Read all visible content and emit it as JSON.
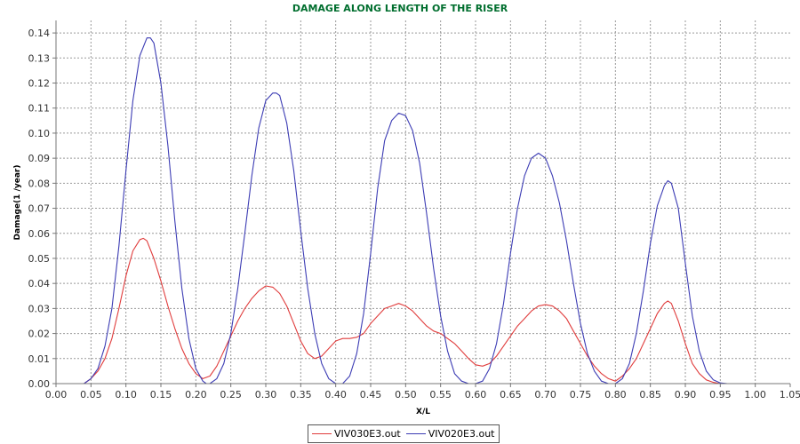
{
  "chart_data": {
    "type": "line",
    "title": "DAMAGE ALONG LENGTH OF THE RISER",
    "xlabel": "X/L",
    "ylabel": "Damage(1 /year)",
    "xlim": [
      0.0,
      1.05
    ],
    "ylim": [
      0.0,
      0.145
    ],
    "x_ticks": [
      "0.00",
      "0.05",
      "0.10",
      "0.15",
      "0.20",
      "0.25",
      "0.30",
      "0.35",
      "0.40",
      "0.45",
      "0.50",
      "0.55",
      "0.60",
      "0.65",
      "0.70",
      "0.75",
      "0.80",
      "0.85",
      "0.90",
      "0.95",
      "1.00",
      "1.05"
    ],
    "y_ticks": [
      "0.00",
      "0.01",
      "0.02",
      "0.03",
      "0.04",
      "0.05",
      "0.06",
      "0.07",
      "0.08",
      "0.09",
      "0.10",
      "0.11",
      "0.12",
      "0.13",
      "0.14"
    ],
    "grid": true,
    "legend_position": "bottom-center",
    "series": [
      {
        "name": "VIV030E3.out",
        "color": "#e03c3c",
        "x": [
          0.0,
          0.04,
          0.05,
          0.06,
          0.07,
          0.08,
          0.09,
          0.1,
          0.11,
          0.12,
          0.125,
          0.13,
          0.14,
          0.15,
          0.16,
          0.17,
          0.18,
          0.19,
          0.2,
          0.21,
          0.22,
          0.23,
          0.24,
          0.25,
          0.26,
          0.27,
          0.28,
          0.29,
          0.3,
          0.31,
          0.32,
          0.33,
          0.34,
          0.35,
          0.36,
          0.37,
          0.38,
          0.39,
          0.4,
          0.41,
          0.42,
          0.43,
          0.44,
          0.45,
          0.46,
          0.47,
          0.48,
          0.49,
          0.5,
          0.51,
          0.52,
          0.53,
          0.54,
          0.55,
          0.56,
          0.57,
          0.58,
          0.59,
          0.6,
          0.61,
          0.62,
          0.63,
          0.64,
          0.65,
          0.66,
          0.67,
          0.68,
          0.69,
          0.7,
          0.71,
          0.72,
          0.73,
          0.74,
          0.75,
          0.76,
          0.77,
          0.78,
          0.79,
          0.8,
          0.81,
          0.82,
          0.83,
          0.84,
          0.85,
          0.86,
          0.87,
          0.875,
          0.88,
          0.89,
          0.9,
          0.91,
          0.92,
          0.93,
          0.94,
          0.95,
          0.96,
          1.05
        ],
        "y": [
          0.0,
          0.0,
          0.002,
          0.005,
          0.01,
          0.018,
          0.03,
          0.043,
          0.053,
          0.0575,
          0.058,
          0.057,
          0.05,
          0.041,
          0.031,
          0.022,
          0.014,
          0.008,
          0.004,
          0.002,
          0.003,
          0.007,
          0.013,
          0.019,
          0.025,
          0.03,
          0.034,
          0.037,
          0.039,
          0.0385,
          0.036,
          0.031,
          0.024,
          0.017,
          0.012,
          0.01,
          0.011,
          0.014,
          0.017,
          0.018,
          0.018,
          0.0185,
          0.02,
          0.024,
          0.027,
          0.03,
          0.031,
          0.032,
          0.031,
          0.029,
          0.026,
          0.023,
          0.021,
          0.02,
          0.018,
          0.016,
          0.013,
          0.01,
          0.0075,
          0.007,
          0.008,
          0.011,
          0.015,
          0.019,
          0.023,
          0.026,
          0.029,
          0.031,
          0.0315,
          0.031,
          0.029,
          0.026,
          0.021,
          0.016,
          0.011,
          0.007,
          0.004,
          0.002,
          0.001,
          0.003,
          0.006,
          0.01,
          0.016,
          0.022,
          0.028,
          0.032,
          0.033,
          0.032,
          0.025,
          0.016,
          0.008,
          0.004,
          0.0015,
          0.0005,
          0.0,
          0.0,
          0.0
        ]
      },
      {
        "name": "VIV020E3.out",
        "color": "#3c3cb4",
        "x": [
          0.0,
          0.04,
          0.05,
          0.06,
          0.07,
          0.08,
          0.09,
          0.1,
          0.11,
          0.12,
          0.13,
          0.135,
          0.14,
          0.15,
          0.16,
          0.17,
          0.18,
          0.19,
          0.2,
          0.21,
          0.215,
          0.22,
          0.23,
          0.24,
          0.25,
          0.26,
          0.27,
          0.28,
          0.29,
          0.3,
          0.31,
          0.315,
          0.32,
          0.33,
          0.34,
          0.35,
          0.36,
          0.37,
          0.38,
          0.39,
          0.4,
          0.405,
          0.41,
          0.42,
          0.43,
          0.44,
          0.45,
          0.46,
          0.47,
          0.48,
          0.49,
          0.5,
          0.51,
          0.52,
          0.53,
          0.54,
          0.55,
          0.56,
          0.57,
          0.58,
          0.59,
          0.6,
          0.61,
          0.62,
          0.63,
          0.64,
          0.65,
          0.66,
          0.67,
          0.68,
          0.69,
          0.7,
          0.71,
          0.72,
          0.73,
          0.74,
          0.75,
          0.76,
          0.77,
          0.78,
          0.79,
          0.8,
          0.81,
          0.82,
          0.83,
          0.84,
          0.85,
          0.86,
          0.87,
          0.875,
          0.88,
          0.89,
          0.9,
          0.91,
          0.92,
          0.93,
          0.94,
          0.95,
          0.96,
          1.05
        ],
        "y": [
          0.0,
          0.0,
          0.002,
          0.006,
          0.015,
          0.03,
          0.055,
          0.085,
          0.113,
          0.131,
          0.138,
          0.138,
          0.136,
          0.12,
          0.095,
          0.065,
          0.038,
          0.018,
          0.006,
          0.001,
          0.0,
          0.0,
          0.002,
          0.008,
          0.02,
          0.038,
          0.06,
          0.083,
          0.102,
          0.113,
          0.116,
          0.116,
          0.115,
          0.104,
          0.085,
          0.061,
          0.038,
          0.02,
          0.008,
          0.002,
          0.0,
          0.0,
          0.0,
          0.003,
          0.012,
          0.028,
          0.052,
          0.078,
          0.097,
          0.105,
          0.108,
          0.107,
          0.101,
          0.088,
          0.068,
          0.046,
          0.027,
          0.013,
          0.004,
          0.001,
          0.0,
          0.0,
          0.001,
          0.006,
          0.016,
          0.032,
          0.052,
          0.07,
          0.083,
          0.09,
          0.092,
          0.09,
          0.083,
          0.072,
          0.057,
          0.04,
          0.024,
          0.012,
          0.005,
          0.001,
          0.0,
          0.0,
          0.002,
          0.008,
          0.02,
          0.037,
          0.056,
          0.071,
          0.079,
          0.081,
          0.08,
          0.07,
          0.048,
          0.027,
          0.013,
          0.005,
          0.0015,
          0.0003,
          0.0,
          0.0
        ]
      }
    ]
  }
}
